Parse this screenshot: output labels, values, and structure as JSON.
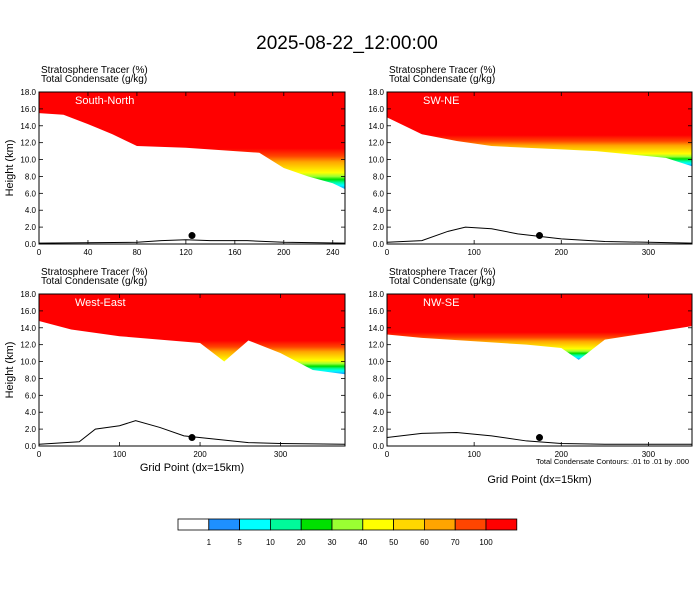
{
  "figure": {
    "title": "2025-08-22_12:00:00",
    "contour_note": "Total Condensate Contours: .01 to .01 by .000"
  },
  "colorbar": {
    "levels": [
      "1",
      "5",
      "10",
      "20",
      "30",
      "40",
      "50",
      "60",
      "70",
      "100"
    ],
    "colors": [
      "#ffffff",
      "#1e90ff",
      "#00ffff",
      "#00fa9a",
      "#00e000",
      "#9aff32",
      "#ffff00",
      "#ffd700",
      "#ffa500",
      "#ff4500",
      "#ff0000"
    ]
  },
  "chart_data": [
    {
      "type": "heatmap",
      "panel_label": "South-North",
      "header_line1": "Stratosphere Tracer   (%)",
      "header_line2": "Total Condensate   (g/kg)",
      "ylabel": "Height (km)",
      "xlabel": "",
      "xlim": [
        0,
        250
      ],
      "ylim": [
        0,
        18
      ],
      "xticks": [
        "0",
        "40",
        "80",
        "120",
        "160",
        "200",
        "240"
      ],
      "yticks": [
        "0.0",
        "2.0",
        "4.0",
        "6.0",
        "8.0",
        "10.0",
        "12.0",
        "14.0",
        "16.0",
        "18.0"
      ],
      "tropopause": [
        [
          0,
          15.5
        ],
        [
          20,
          15.3
        ],
        [
          40,
          14.2
        ],
        [
          60,
          13.0
        ],
        [
          80,
          11.6
        ],
        [
          120,
          11.4
        ],
        [
          160,
          11.0
        ],
        [
          180,
          10.8
        ],
        [
          200,
          9.0
        ],
        [
          220,
          8.0
        ],
        [
          240,
          7.2
        ],
        [
          250,
          6.5
        ]
      ],
      "terrain": [
        [
          0,
          0.1
        ],
        [
          80,
          0.2
        ],
        [
          100,
          0.4
        ],
        [
          120,
          0.5
        ],
        [
          140,
          0.4
        ],
        [
          170,
          0.4
        ],
        [
          200,
          0.2
        ],
        [
          250,
          0.1
        ]
      ],
      "site_marker": [
        125,
        1.0
      ]
    },
    {
      "type": "heatmap",
      "panel_label": "SW-NE",
      "header_line1": "Stratosphere Tracer   (%)",
      "header_line2": "Total Condensate   (g/kg)",
      "ylabel": "",
      "xlabel": "",
      "xlim": [
        0,
        350
      ],
      "ylim": [
        0,
        18
      ],
      "xticks": [
        "0",
        "100",
        "200",
        "300"
      ],
      "yticks": [
        "0.0",
        "2.0",
        "4.0",
        "6.0",
        "8.0",
        "10.0",
        "12.0",
        "14.0",
        "16.0",
        "18.0"
      ],
      "tropopause": [
        [
          0,
          15.0
        ],
        [
          40,
          13.0
        ],
        [
          80,
          12.2
        ],
        [
          120,
          11.6
        ],
        [
          160,
          11.4
        ],
        [
          200,
          11.2
        ],
        [
          240,
          11.0
        ],
        [
          280,
          10.6
        ],
        [
          320,
          10.2
        ],
        [
          350,
          9.2
        ]
      ],
      "terrain": [
        [
          0,
          0.2
        ],
        [
          40,
          0.4
        ],
        [
          70,
          1.5
        ],
        [
          90,
          2.0
        ],
        [
          120,
          1.8
        ],
        [
          150,
          1.2
        ],
        [
          200,
          0.6
        ],
        [
          250,
          0.3
        ],
        [
          300,
          0.2
        ],
        [
          350,
          0.1
        ]
      ],
      "site_marker": [
        175,
        1.0
      ]
    },
    {
      "type": "heatmap",
      "panel_label": "West-East",
      "header_line1": "Stratosphere Tracer   (%)",
      "header_line2": "Total Condensate   (g/kg)",
      "ylabel": "Height (km)",
      "xlabel": "Grid Point (dx=15km)",
      "xlim": [
        0,
        380
      ],
      "ylim": [
        0,
        18
      ],
      "xticks": [
        "0",
        "100",
        "200",
        "300"
      ],
      "yticks": [
        "0.0",
        "2.0",
        "4.0",
        "6.0",
        "8.0",
        "10.0",
        "12.0",
        "14.0",
        "16.0",
        "18.0"
      ],
      "tropopause": [
        [
          0,
          14.8
        ],
        [
          40,
          13.8
        ],
        [
          100,
          13.0
        ],
        [
          150,
          12.6
        ],
        [
          200,
          12.2
        ],
        [
          230,
          10.0
        ],
        [
          260,
          12.5
        ],
        [
          300,
          11.0
        ],
        [
          340,
          9.0
        ],
        [
          380,
          8.5
        ]
      ],
      "terrain": [
        [
          0,
          0.2
        ],
        [
          50,
          0.5
        ],
        [
          70,
          2.0
        ],
        [
          100,
          2.4
        ],
        [
          120,
          3.0
        ],
        [
          150,
          2.2
        ],
        [
          180,
          1.2
        ],
        [
          220,
          0.8
        ],
        [
          260,
          0.4
        ],
        [
          300,
          0.3
        ],
        [
          380,
          0.2
        ]
      ],
      "site_marker": [
        190,
        1.0
      ]
    },
    {
      "type": "heatmap",
      "panel_label": "NW-SE",
      "header_line1": "Stratosphere Tracer   (%)",
      "header_line2": "Total Condensate   (g/kg)",
      "ylabel": "",
      "xlabel": "Grid Point (dx=15km)",
      "xlim": [
        0,
        350
      ],
      "ylim": [
        0,
        18
      ],
      "xticks": [
        "0",
        "100",
        "200",
        "300"
      ],
      "yticks": [
        "0.0",
        "2.0",
        "4.0",
        "6.0",
        "8.0",
        "10.0",
        "12.0",
        "14.0",
        "16.0",
        "18.0"
      ],
      "tropopause": [
        [
          0,
          13.2
        ],
        [
          40,
          12.8
        ],
        [
          100,
          12.4
        ],
        [
          160,
          12.0
        ],
        [
          200,
          11.6
        ],
        [
          220,
          10.2
        ],
        [
          250,
          12.6
        ],
        [
          300,
          13.4
        ],
        [
          350,
          14.2
        ]
      ],
      "terrain": [
        [
          0,
          1.0
        ],
        [
          40,
          1.5
        ],
        [
          80,
          1.6
        ],
        [
          120,
          1.2
        ],
        [
          160,
          0.6
        ],
        [
          200,
          0.3
        ],
        [
          250,
          0.2
        ],
        [
          350,
          0.2
        ]
      ],
      "site_marker": [
        175,
        1.0
      ]
    }
  ]
}
